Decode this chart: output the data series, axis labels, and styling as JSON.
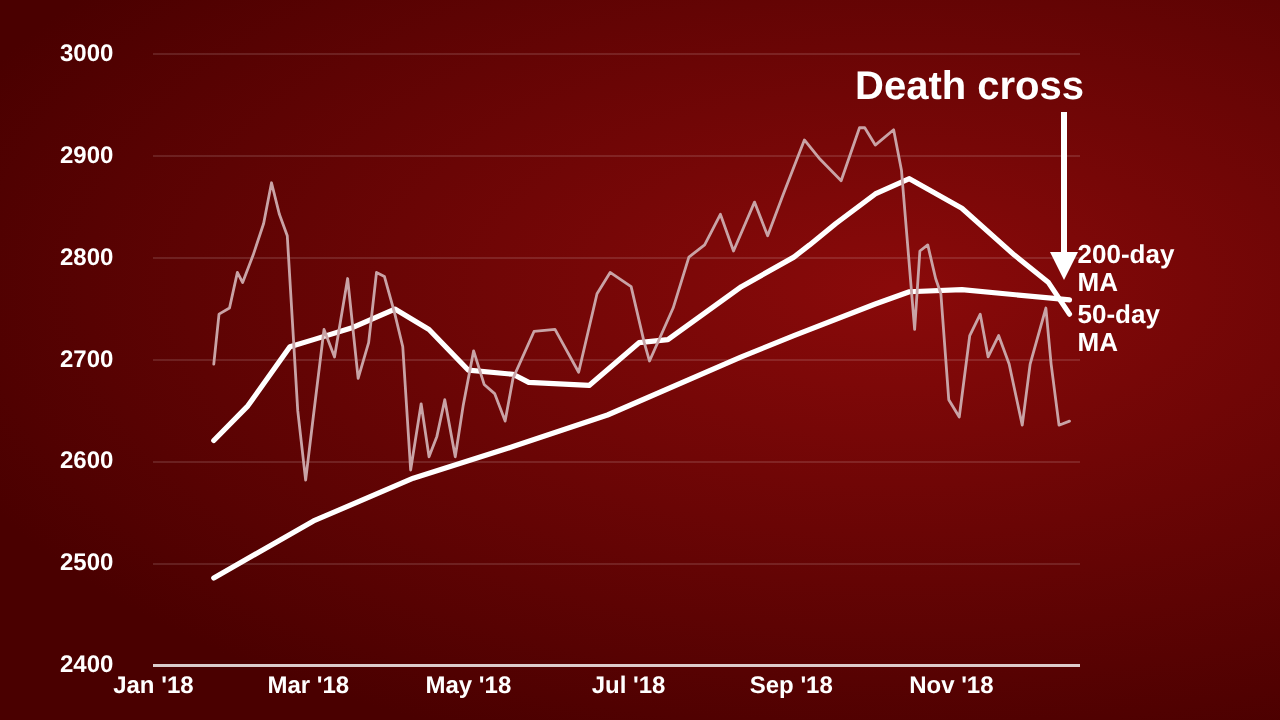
{
  "chart_data": {
    "type": "line",
    "x": [
      "2018-01-24",
      "2018-01-26",
      "2018-01-30",
      "2018-02-02",
      "2018-02-04",
      "2018-02-08",
      "2018-02-12",
      "2018-02-15",
      "2018-02-18",
      "2018-02-21",
      "2018-02-25",
      "2018-02-28",
      "2018-03-03",
      "2018-03-07",
      "2018-03-11",
      "2018-03-16",
      "2018-03-20",
      "2018-03-24",
      "2018-03-27",
      "2018-03-30",
      "2018-04-03",
      "2018-04-06",
      "2018-04-09",
      "2018-04-13",
      "2018-04-16",
      "2018-04-19",
      "2018-04-22",
      "2018-04-26",
      "2018-04-29",
      "2018-05-03",
      "2018-05-07",
      "2018-05-11",
      "2018-05-15",
      "2018-05-18",
      "2018-05-26",
      "2018-06-03",
      "2018-06-12",
      "2018-06-19",
      "2018-06-24",
      "2018-07-02",
      "2018-07-07",
      "2018-07-09",
      "2018-07-18",
      "2018-07-24",
      "2018-07-30",
      "2018-08-05",
      "2018-08-10",
      "2018-08-18",
      "2018-08-23",
      "2018-08-29",
      "2018-09-06",
      "2018-09-12",
      "2018-09-20",
      "2018-09-27",
      "2018-09-29",
      "2018-10-03",
      "2018-10-10",
      "2018-10-13",
      "2018-10-18",
      "2018-10-20",
      "2018-10-23",
      "2018-10-26",
      "2018-10-28",
      "2018-10-31",
      "2018-11-04",
      "2018-11-08",
      "2018-11-12",
      "2018-11-15",
      "2018-11-19",
      "2018-11-23",
      "2018-11-28",
      "2018-12-01",
      "2018-12-07",
      "2018-12-09",
      "2018-12-12",
      "2018-12-16"
    ],
    "series": [
      {
        "color": "#c9a3a6",
        "values": [
          2696,
          2745,
          2751,
          2786,
          2776,
          2803,
          2834,
          2874,
          2843,
          2822,
          2650,
          2582,
          2646,
          2730,
          2703,
          2780,
          2682,
          2717,
          2786,
          2782,
          2745,
          2713,
          2592,
          2657,
          2605,
          2625,
          2661,
          2605,
          2655,
          2709,
          2676,
          2667,
          2640,
          2682,
          2728,
          2730,
          2688,
          2765,
          2786,
          2772,
          2717,
          2699,
          2751,
          2801,
          2813,
          2843,
          2807,
          2855,
          2822,
          2863,
          2916,
          2897,
          2876,
          2928,
          2928,
          2911,
          2926,
          2886,
          2730,
          2807,
          2813,
          2780,
          2765,
          2661,
          2644,
          2724,
          2745,
          2703,
          2724,
          2696,
          2636,
          2696,
          2751,
          2696,
          2636,
          2640
        ]
      },
      {
        "name": "200-day MA",
        "color": "#ffffff",
        "x": [
          "2018-01-24",
          "2018-03-03",
          "2018-04-10",
          "2018-05-18",
          "2018-06-23",
          "2018-08-13",
          "2018-09-02",
          "2018-10-03",
          "2018-10-16",
          "2018-11-05",
          "2018-12-08",
          "2018-12-16"
        ],
        "values": [
          2486,
          2542,
          2584,
          2615,
          2646,
          2703,
          2724,
          2755,
          2767,
          2769,
          2761,
          2759
        ]
      },
      {
        "name": "50-day MA",
        "color": "#ffffff",
        "x": [
          "2018-01-24",
          "2018-02-06",
          "2018-02-22",
          "2018-03-03",
          "2018-03-18",
          "2018-04-03",
          "2018-04-16",
          "2018-05-01",
          "2018-05-18",
          "2018-05-24",
          "2018-06-16",
          "2018-07-05",
          "2018-07-16",
          "2018-08-13",
          "2018-09-02",
          "2018-09-08",
          "2018-09-18",
          "2018-10-03",
          "2018-10-16",
          "2018-11-05",
          "2018-11-25",
          "2018-12-08",
          "2018-12-16"
        ],
        "values": [
          2621,
          2655,
          2713,
          2720,
          2732,
          2750,
          2730,
          2690,
          2686,
          2678,
          2675,
          2717,
          2720,
          2772,
          2801,
          2813,
          2834,
          2863,
          2878,
          2849,
          2803,
          2776,
          2745
        ]
      }
    ],
    "xlim": [
      "2018-01-01",
      "2018-12-20"
    ],
    "xticks": [
      {
        "value": "2018-01-01",
        "label": "Jan '18"
      },
      {
        "value": "2018-03-01",
        "label": "Mar '18"
      },
      {
        "value": "2018-05-01",
        "label": "May '18"
      },
      {
        "value": "2018-07-01",
        "label": "Jul '18"
      },
      {
        "value": "2018-09-01",
        "label": "Sep '18"
      },
      {
        "value": "2018-11-01",
        "label": "Nov '18"
      }
    ],
    "ylim": [
      2400,
      3000
    ],
    "yticks": [
      2400,
      2500,
      2600,
      2700,
      2800,
      2900,
      3000
    ],
    "grid": "y",
    "legend": "right",
    "marker": "none",
    "line_style": "solid",
    "annotations": [
      "Death cross"
    ]
  }
}
